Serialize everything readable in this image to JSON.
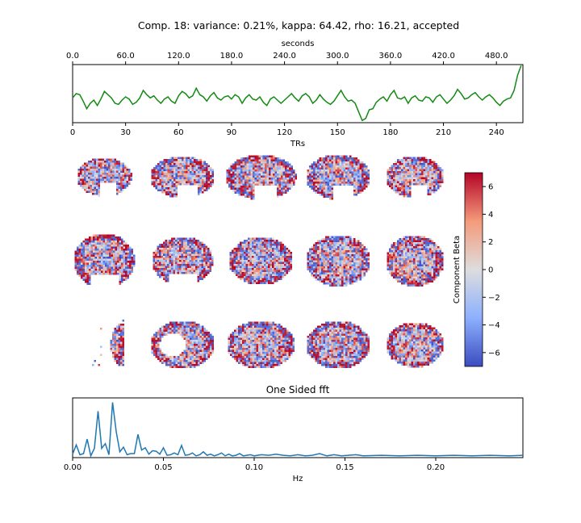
{
  "figure": {
    "title": "Comp. 18: variance: 0.21%, kappa: 64.42, rho: 16.21, accepted"
  },
  "chart_data": [
    {
      "type": "line",
      "panel": "timeseries",
      "xlabel": "TRs",
      "x2label": "seconds",
      "xlim": [
        0,
        255
      ],
      "xticks": [
        0,
        30,
        60,
        90,
        120,
        150,
        180,
        210,
        240
      ],
      "xtick_labels": [
        "0",
        "30",
        "60",
        "90",
        "120",
        "150",
        "180",
        "210",
        "240"
      ],
      "x2ticks": [
        0,
        60,
        120,
        180,
        240,
        300,
        360,
        420,
        480
      ],
      "x2tick_labels": [
        "0.0",
        "60.0",
        "120.0",
        "180.0",
        "240.0",
        "300.0",
        "360.0",
        "420.0",
        "480.0"
      ],
      "y_ticks_shown": false,
      "series": [
        {
          "color": "#138a13",
          "x": [
            0,
            2,
            4,
            6,
            8,
            10,
            12,
            14,
            16,
            18,
            20,
            22,
            24,
            26,
            28,
            30,
            32,
            34,
            36,
            38,
            40,
            42,
            44,
            46,
            48,
            50,
            52,
            54,
            56,
            58,
            60,
            62,
            64,
            66,
            68,
            70,
            72,
            74,
            76,
            78,
            80,
            82,
            84,
            86,
            88,
            90,
            92,
            94,
            96,
            98,
            100,
            102,
            104,
            106,
            108,
            110,
            112,
            114,
            116,
            118,
            120,
            122,
            124,
            126,
            128,
            130,
            132,
            134,
            136,
            138,
            140,
            142,
            144,
            146,
            148,
            150,
            152,
            154,
            156,
            158,
            160,
            162,
            164,
            166,
            168,
            170,
            172,
            174,
            176,
            178,
            180,
            182,
            184,
            186,
            188,
            190,
            192,
            194,
            196,
            198,
            200,
            202,
            204,
            206,
            208,
            210,
            212,
            214,
            216,
            218,
            220,
            222,
            224,
            226,
            228,
            230,
            232,
            234,
            236,
            238,
            240,
            242,
            244,
            246,
            248,
            250,
            252,
            254
          ],
          "values": [
            0.55,
            0.75,
            0.7,
            0.4,
            0.05,
            0.3,
            0.45,
            0.2,
            0.5,
            0.85,
            0.7,
            0.55,
            0.3,
            0.25,
            0.45,
            0.6,
            0.5,
            0.25,
            0.35,
            0.55,
            0.9,
            0.7,
            0.55,
            0.65,
            0.45,
            0.3,
            0.5,
            0.6,
            0.4,
            0.3,
            0.65,
            0.85,
            0.75,
            0.55,
            0.65,
            1.0,
            0.7,
            0.6,
            0.4,
            0.65,
            0.8,
            0.55,
            0.45,
            0.6,
            0.65,
            0.5,
            0.7,
            0.6,
            0.3,
            0.55,
            0.7,
            0.5,
            0.45,
            0.6,
            0.35,
            0.2,
            0.5,
            0.6,
            0.45,
            0.3,
            0.45,
            0.6,
            0.75,
            0.55,
            0.4,
            0.65,
            0.75,
            0.6,
            0.3,
            0.45,
            0.7,
            0.5,
            0.35,
            0.25,
            0.4,
            0.65,
            0.9,
            0.6,
            0.4,
            0.45,
            0.3,
            -0.1,
            -0.5,
            -0.4,
            0.0,
            0.05,
            0.35,
            0.5,
            0.6,
            0.4,
            0.7,
            0.9,
            0.55,
            0.5,
            0.6,
            0.3,
            0.55,
            0.65,
            0.45,
            0.4,
            0.6,
            0.55,
            0.35,
            0.6,
            0.7,
            0.5,
            0.3,
            0.45,
            0.65,
            0.95,
            0.75,
            0.5,
            0.55,
            0.7,
            0.8,
            0.6,
            0.45,
            0.6,
            0.7,
            0.55,
            0.35,
            0.2,
            0.4,
            0.5,
            0.55,
            0.9,
            1.6,
            2.05
          ]
        }
      ]
    },
    {
      "type": "heatmap",
      "panel": "component-maps",
      "rows": 3,
      "cols": 5,
      "colorbar_label": "Component Beta",
      "colorbar_ticks": [
        6,
        4,
        2,
        0,
        -2,
        -4,
        -6
      ],
      "colorbar_tick_labels": [
        "6",
        "4",
        "2",
        "0",
        "−2",
        "−4",
        "−6"
      ],
      "vmin": -7,
      "vmax": 7,
      "colormap": [
        "#3b4cc0",
        "#8db0fe",
        "#dddddd",
        "#f49a7b",
        "#b40426"
      ]
    },
    {
      "type": "line",
      "panel": "fft",
      "title": "One Sided fft",
      "xlabel": "Hz",
      "xlim": [
        0,
        0.248
      ],
      "xticks": [
        0.0,
        0.05,
        0.1,
        0.15,
        0.2
      ],
      "xtick_labels": [
        "0.00",
        "0.05",
        "0.10",
        "0.15",
        "0.20"
      ],
      "y_ticks_shown": false,
      "series": [
        {
          "color": "#1f77b4",
          "x": [
            0,
            0.002,
            0.004,
            0.006,
            0.008,
            0.01,
            0.012,
            0.014,
            0.016,
            0.018,
            0.02,
            0.022,
            0.024,
            0.026,
            0.028,
            0.03,
            0.032,
            0.034,
            0.036,
            0.038,
            0.04,
            0.042,
            0.044,
            0.046,
            0.048,
            0.05,
            0.052,
            0.054,
            0.056,
            0.058,
            0.06,
            0.062,
            0.064,
            0.066,
            0.068,
            0.07,
            0.072,
            0.074,
            0.076,
            0.078,
            0.08,
            0.082,
            0.084,
            0.086,
            0.088,
            0.09,
            0.092,
            0.094,
            0.096,
            0.098,
            0.1,
            0.104,
            0.108,
            0.112,
            0.116,
            0.12,
            0.124,
            0.128,
            0.132,
            0.136,
            0.14,
            0.144,
            0.148,
            0.152,
            0.156,
            0.16,
            0.17,
            0.18,
            0.19,
            0.2,
            0.21,
            0.22,
            0.23,
            0.24,
            0.248
          ],
          "values": [
            0.06,
            0.22,
            0.05,
            0.07,
            0.32,
            0.03,
            0.16,
            0.8,
            0.16,
            0.24,
            0.05,
            0.95,
            0.45,
            0.1,
            0.18,
            0.05,
            0.07,
            0.07,
            0.4,
            0.13,
            0.17,
            0.06,
            0.12,
            0.11,
            0.06,
            0.17,
            0.04,
            0.05,
            0.08,
            0.05,
            0.21,
            0.04,
            0.05,
            0.08,
            0.03,
            0.05,
            0.1,
            0.04,
            0.06,
            0.03,
            0.05,
            0.08,
            0.03,
            0.06,
            0.03,
            0.04,
            0.07,
            0.03,
            0.04,
            0.05,
            0.03,
            0.05,
            0.04,
            0.06,
            0.04,
            0.03,
            0.05,
            0.03,
            0.04,
            0.07,
            0.03,
            0.05,
            0.03,
            0.04,
            0.05,
            0.03,
            0.04,
            0.03,
            0.04,
            0.03,
            0.04,
            0.03,
            0.04,
            0.03,
            0.04
          ]
        }
      ]
    }
  ]
}
